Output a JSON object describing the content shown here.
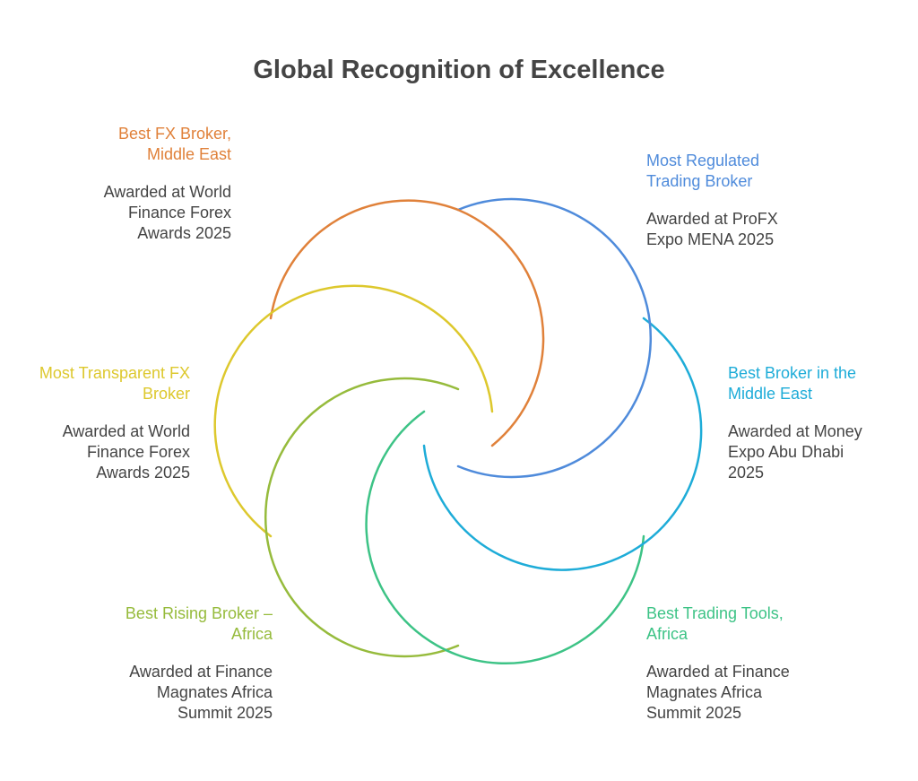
{
  "title": "Global Recognition of Excellence",
  "colors": {
    "orange": "#E0813A",
    "blue": "#4F8BDB",
    "cyan": "#1EACD8",
    "teal": "#3DC386",
    "lime": "#96BB3C",
    "yellow": "#DDC82D"
  },
  "awards": [
    {
      "id": "best-fx-broker-middle-east",
      "label": "Best FX Broker,\nMiddle East",
      "description": "Awarded at World\nFinance Forex\nAwards 2025",
      "color": "#E0813A"
    },
    {
      "id": "most-regulated-trading-broker",
      "label": "Most Regulated\nTrading Broker",
      "description": "Awarded at ProFX\nExpo MENA 2025",
      "color": "#4F8BDB"
    },
    {
      "id": "best-broker-middle-east",
      "label": "Best Broker in the\nMiddle East",
      "description": "Awarded at Money\nExpo Abu Dhabi\n2025",
      "color": "#1EACD8"
    },
    {
      "id": "best-trading-tools-africa",
      "label": "Best Trading Tools,\nAfrica",
      "description": "Awarded at Finance\nMagnates Africa\nSummit 2025",
      "color": "#3DC386"
    },
    {
      "id": "best-rising-broker-africa",
      "label": "Best Rising Broker –\nAfrica",
      "description": "Awarded at Finance\nMagnates Africa\nSummit 2025",
      "color": "#96BB3C"
    },
    {
      "id": "most-transparent-fx-broker",
      "label": "Most Transparent FX\nBroker",
      "description": "Awarded at World\nFinance Forex\nAwards 2025",
      "color": "#DDC82D"
    }
  ]
}
